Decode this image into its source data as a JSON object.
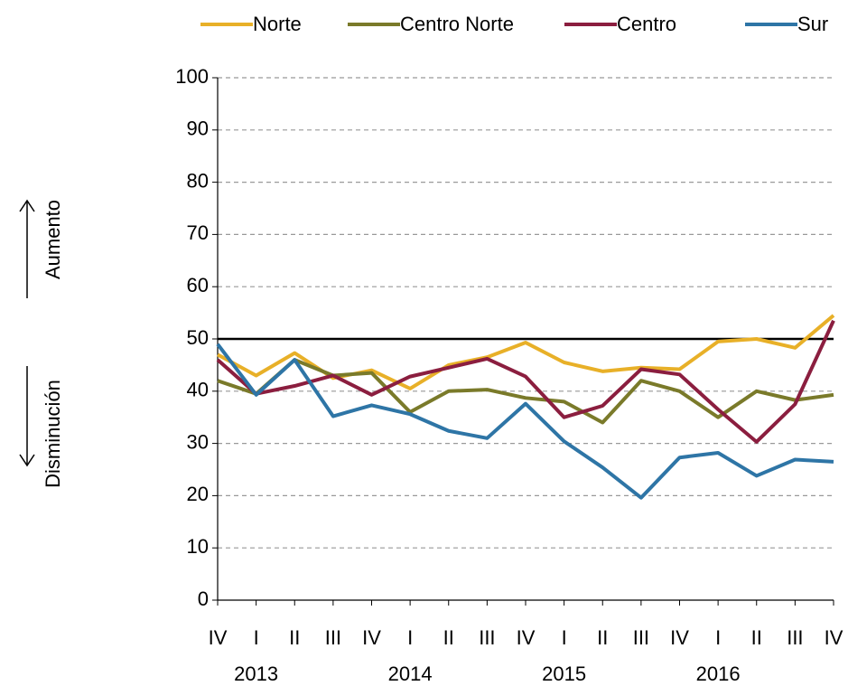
{
  "chart_data": {
    "type": "line",
    "categories": [
      "IV",
      "I",
      "II",
      "III",
      "IV",
      "I",
      "II",
      "III",
      "IV",
      "I",
      "II",
      "III",
      "IV",
      "I",
      "II",
      "III",
      "IV"
    ],
    "years": [
      "2013",
      "2014",
      "2015",
      "2016"
    ],
    "series": [
      {
        "name": "Norte",
        "color": "#e8b028",
        "values": [
          47,
          43,
          47.3,
          42.5,
          44,
          40.5,
          45,
          46.5,
          49.3,
          45.5,
          43.8,
          44.5,
          44.2,
          49.5,
          50,
          48.3,
          54.5
        ]
      },
      {
        "name": "Centro Norte",
        "color": "#7a7a2a",
        "values": [
          42,
          39.5,
          46,
          43,
          43.5,
          36,
          40,
          40.3,
          38.7,
          38,
          34,
          42,
          40,
          35,
          40,
          38.3,
          39.3
        ]
      },
      {
        "name": "Centro",
        "color": "#8b1e3f",
        "values": [
          46,
          39.5,
          41,
          43,
          39.3,
          42.8,
          44.5,
          46.2,
          42.8,
          35,
          37.2,
          44.2,
          43.2,
          36.5,
          30.3,
          37.5,
          53.5
        ]
      },
      {
        "name": "Sur",
        "color": "#2e75a6",
        "values": [
          49,
          39.3,
          46,
          35.2,
          37.3,
          35.6,
          32.4,
          31,
          37.6,
          30.4,
          25.4,
          19.6,
          27.3,
          28.2,
          23.8,
          26.9,
          26.5
        ]
      }
    ],
    "ylim": [
      0,
      100
    ],
    "yticks": [
      0,
      10,
      20,
      30,
      40,
      50,
      60,
      70,
      80,
      90,
      100
    ],
    "grid": true,
    "reference_line": 50,
    "annotations": [
      "Aumento",
      "Disminución"
    ]
  }
}
